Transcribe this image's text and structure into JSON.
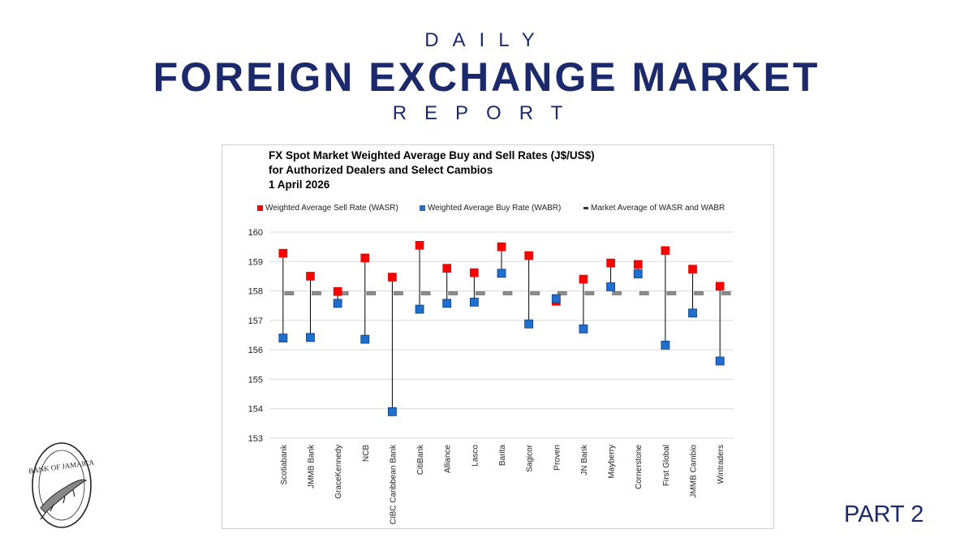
{
  "header": {
    "daily": "DAILY",
    "title": "FOREIGN EXCHANGE MARKET",
    "report": "REPORT"
  },
  "footer": {
    "part": "PART 2",
    "logo_text": "BANK OF JAMAICA"
  },
  "colors": {
    "navy": "#1c2a6b",
    "wasr": "#ff0000",
    "wabr": "#1f6fd1",
    "market_avg": "#8c8c8c"
  },
  "chart_data": {
    "type": "scatter",
    "title_lines": [
      "FX Spot Market Weighted Average Buy and Sell Rates (J$/US$)",
      "for Authorized Dealers and Select Cambios",
      "1 April 2026"
    ],
    "legend_position": "top",
    "grid": true,
    "ylim": [
      153,
      160
    ],
    "yticks": [
      153,
      154,
      155,
      156,
      157,
      158,
      159,
      160
    ],
    "categories": [
      "Scotiabank",
      "JMMB Bank",
      "GraceKennedy",
      "NCB",
      "CIBC Caribbean Bank",
      "CitiBank",
      "Alliance",
      "Lasco",
      "Barita",
      "Sagicor",
      "Proven",
      "JN Bank",
      "Mayberry",
      "Cornerstone",
      "First Global",
      "JMMB Cambio",
      "Wintraders"
    ],
    "series": [
      {
        "name": "Weighted Average Sell Rate (WASR)",
        "marker": "square",
        "color": "#ff0000",
        "values": [
          159.28,
          158.5,
          157.98,
          159.12,
          158.47,
          159.55,
          158.77,
          158.62,
          159.5,
          159.2,
          157.65,
          158.4,
          158.95,
          158.9,
          159.37,
          158.74,
          158.16
        ]
      },
      {
        "name": "Weighted Average Buy Rate (WABR)",
        "marker": "square",
        "color": "#1f6fd1",
        "values": [
          156.4,
          156.42,
          157.58,
          156.36,
          153.9,
          157.38,
          157.58,
          157.62,
          158.6,
          156.88,
          157.74,
          156.71,
          158.14,
          158.58,
          156.16,
          157.25,
          155.62
        ]
      },
      {
        "name": "Market Average of WASR and WABR",
        "marker": "dash",
        "color": "#8c8c8c",
        "values": [
          157.92,
          157.92,
          157.92,
          157.92,
          157.92,
          157.92,
          157.92,
          157.92,
          157.92,
          157.92,
          157.92,
          157.92,
          157.92,
          157.92,
          157.92,
          157.92,
          157.92
        ]
      }
    ]
  }
}
